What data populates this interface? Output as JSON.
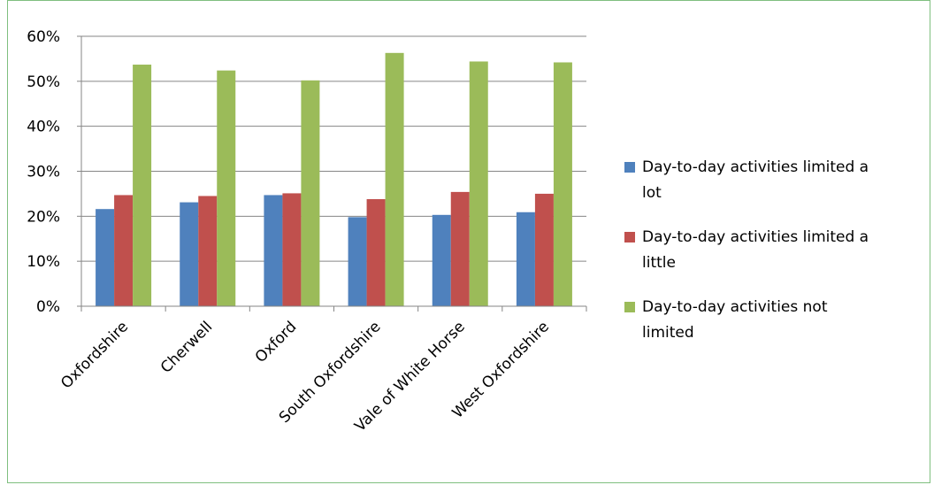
{
  "chart_data": {
    "type": "bar",
    "title": "",
    "xlabel": "",
    "ylabel": "",
    "categories": [
      "Oxfordshire",
      "Cherwell",
      "Oxford",
      "South Oxfordshire",
      "Vale of White Horse",
      "West Oxfordshire"
    ],
    "series": [
      {
        "name": "Day-to-day activities limited a lot",
        "color": "#4f81bd",
        "values": [
          21.6,
          23.1,
          24.7,
          19.8,
          20.3,
          20.9
        ]
      },
      {
        "name": "Day-to-day activities limited a little",
        "color": "#c0504d",
        "values": [
          24.7,
          24.5,
          25.1,
          23.8,
          25.4,
          25.0
        ]
      },
      {
        "name": "Day-to-day activities not limited",
        "color": "#9bbb59",
        "values": [
          53.7,
          52.4,
          50.2,
          56.3,
          54.4,
          54.2
        ]
      }
    ],
    "ylim": [
      0,
      60
    ],
    "yticks": [
      "0%",
      "10%",
      "20%",
      "30%",
      "40%",
      "50%",
      "60%"
    ],
    "ytick_values": [
      0,
      10,
      20,
      30,
      40,
      50,
      60
    ],
    "grid": true,
    "legend_position": "right"
  }
}
